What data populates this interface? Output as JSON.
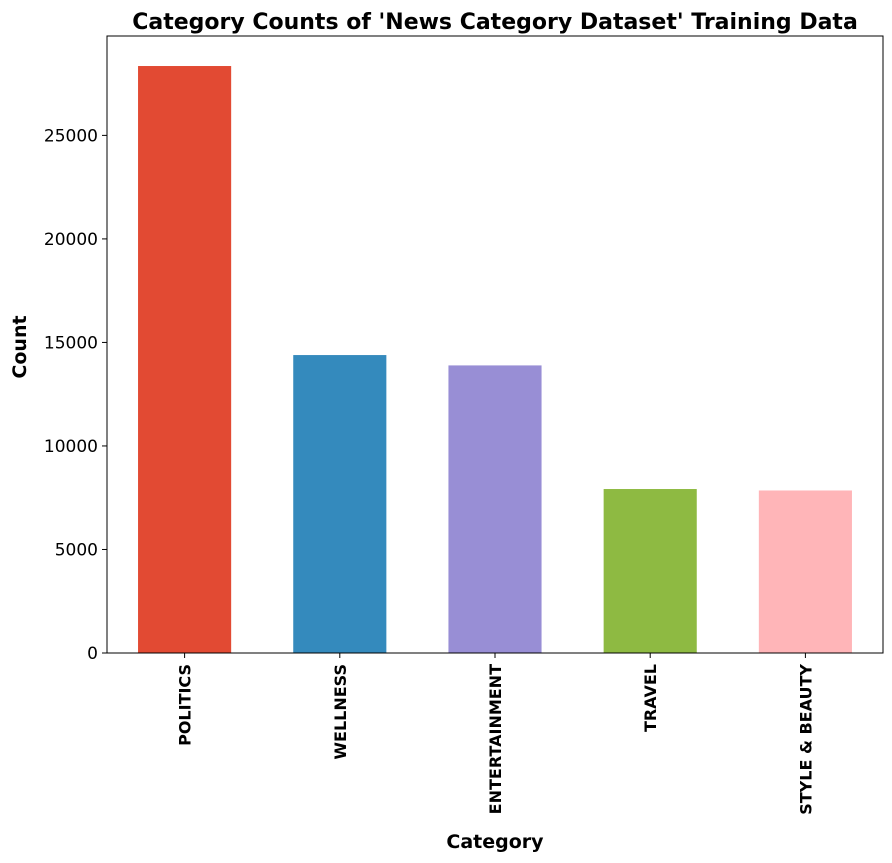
{
  "chart_data": {
    "type": "bar",
    "title": "Category Counts of 'News Category Dataset' Training Data",
    "xlabel": "Category",
    "ylabel": "Count",
    "categories": [
      "POLITICS",
      "WELLNESS",
      "ENTERTAINMENT",
      "TRAVEL",
      "STYLE & BEAUTY"
    ],
    "values": [
      28350,
      14390,
      13890,
      7920,
      7850
    ],
    "colors": [
      "#E24A33",
      "#348ABD",
      "#988ED5",
      "#8EBA42",
      "#FFB5B8"
    ],
    "yticks": [
      0,
      5000,
      10000,
      15000,
      20000,
      25000
    ],
    "ylim": [
      0,
      29800
    ],
    "grid": false,
    "legend": false
  }
}
